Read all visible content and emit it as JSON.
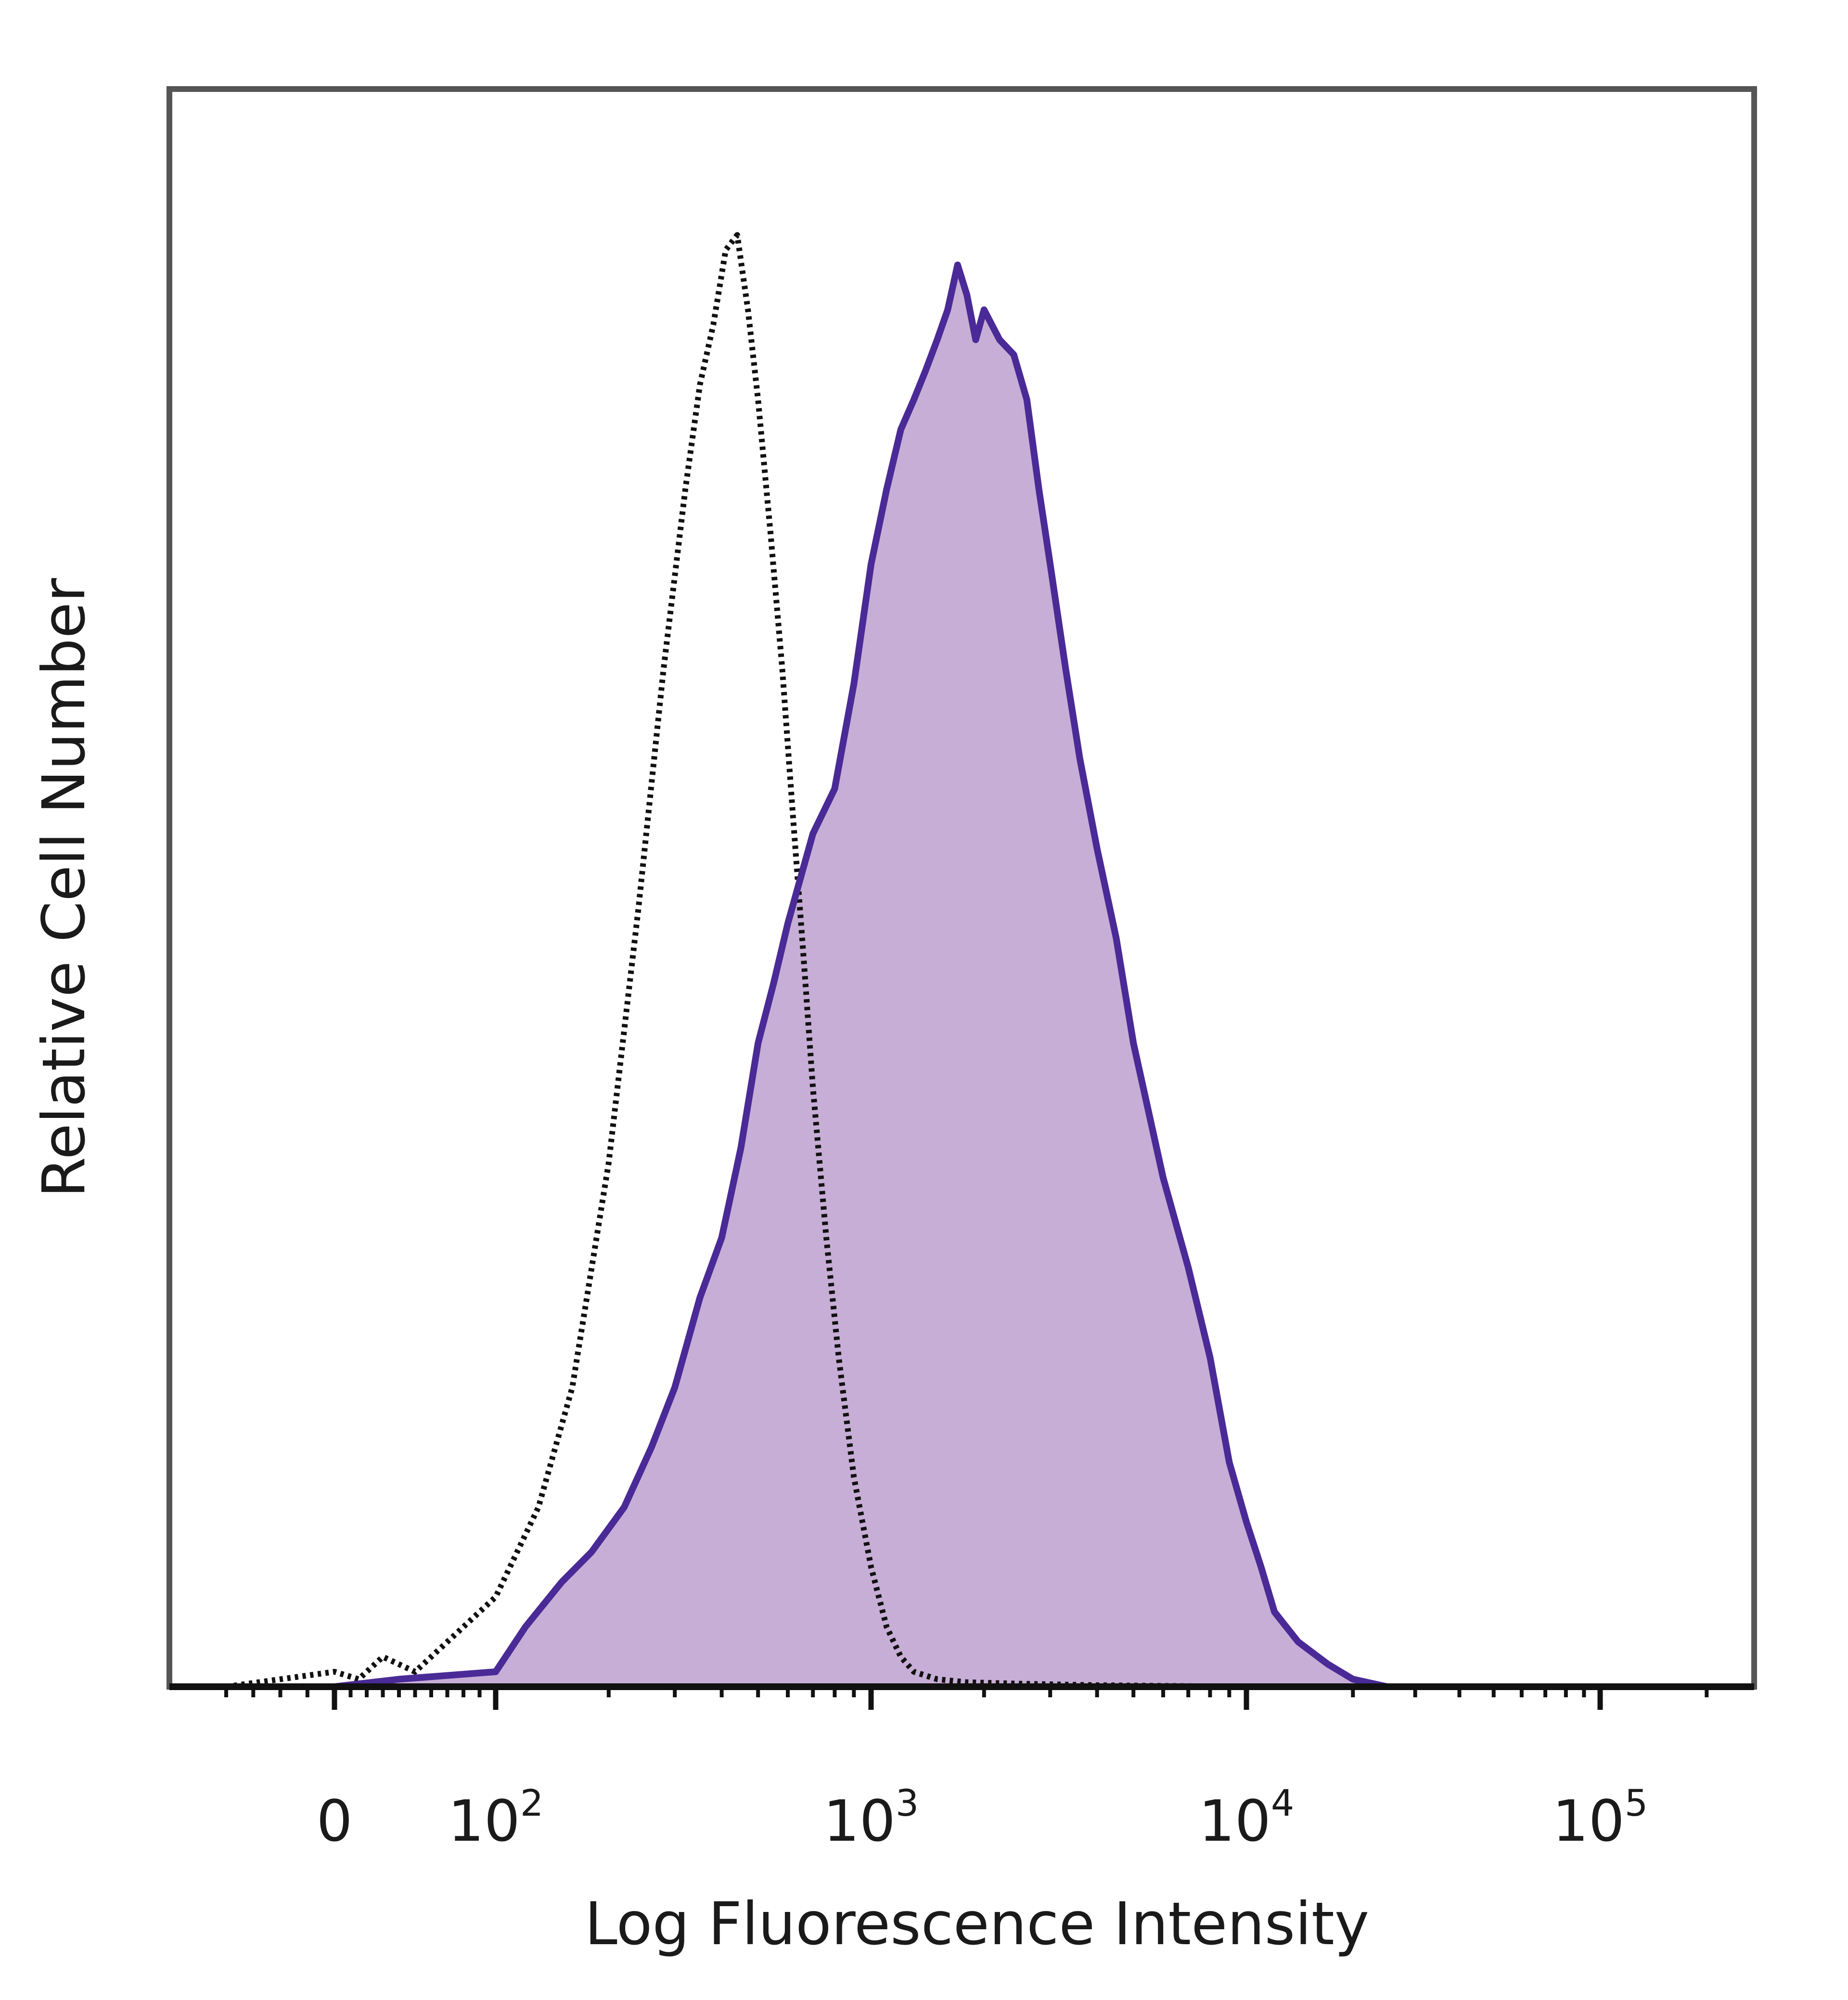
{
  "chart_data": {
    "type": "area",
    "title": "",
    "xlabel": "Log Fluorescence Intensity",
    "ylabel": "Relative Cell Number",
    "x_scale": "biexponential",
    "xlim": [
      -40,
      200000
    ],
    "ylim": [
      0,
      100
    ],
    "grid": false,
    "legend": "none",
    "x_ticks": [
      {
        "value": 0,
        "base": "0",
        "exp": ""
      },
      {
        "value": 100,
        "base": "10",
        "exp": "2"
      },
      {
        "value": 1000,
        "base": "10",
        "exp": "3"
      },
      {
        "value": 10000,
        "base": "10",
        "exp": "4"
      },
      {
        "value": 100000,
        "base": "10",
        "exp": "5"
      }
    ],
    "series": [
      {
        "role": "isotype-control",
        "style": "dotted",
        "color": "#111111",
        "x": [
          -40,
          0,
          15,
          30,
          50,
          70,
          100,
          130,
          160,
          200,
          240,
          280,
          320,
          350,
          380,
          410,
          440,
          470,
          500,
          540,
          580,
          620,
          660,
          700,
          760,
          820,
          900,
          1000,
          1100,
          1200,
          1300,
          1500,
          1800,
          2500,
          4000,
          10000,
          30000,
          200000
        ],
        "y": [
          0,
          1,
          0.5,
          2,
          1,
          3,
          6,
          12,
          20,
          35,
          52,
          68,
          80,
          87,
          91,
          96,
          97,
          92,
          86,
          77,
          68,
          58,
          49,
          40,
          30,
          22,
          14,
          8,
          4,
          2,
          1,
          0.5,
          0.3,
          0.2,
          0.1,
          0,
          0,
          0
        ]
      },
      {
        "role": "stained-sample",
        "style": "solid-filled",
        "color": "#4a2a96",
        "fill": "#c7aed6",
        "x": [
          -40,
          0,
          40,
          100,
          120,
          150,
          180,
          220,
          260,
          300,
          350,
          400,
          450,
          500,
          550,
          600,
          700,
          800,
          900,
          1000,
          1100,
          1200,
          1300,
          1400,
          1500,
          1600,
          1700,
          1800,
          1900,
          2000,
          2200,
          2400,
          2600,
          2800,
          3000,
          3300,
          3600,
          4000,
          4500,
          5000,
          6000,
          7000,
          8000,
          9000,
          10000,
          11000,
          12000,
          14000,
          17000,
          20000,
          25000,
          40000,
          200000
        ],
        "y": [
          0,
          0,
          0.5,
          1,
          4,
          7,
          9,
          12,
          16,
          20,
          26,
          30,
          36,
          43,
          47,
          51,
          57,
          60,
          67,
          75,
          80,
          84,
          86,
          88,
          90,
          92,
          95,
          93,
          90,
          92,
          90,
          89,
          86,
          80,
          75,
          68,
          62,
          56,
          50,
          43,
          34,
          28,
          22,
          15,
          11,
          8,
          5,
          3,
          1.5,
          0.5,
          0,
          0,
          0
        ]
      }
    ]
  }
}
